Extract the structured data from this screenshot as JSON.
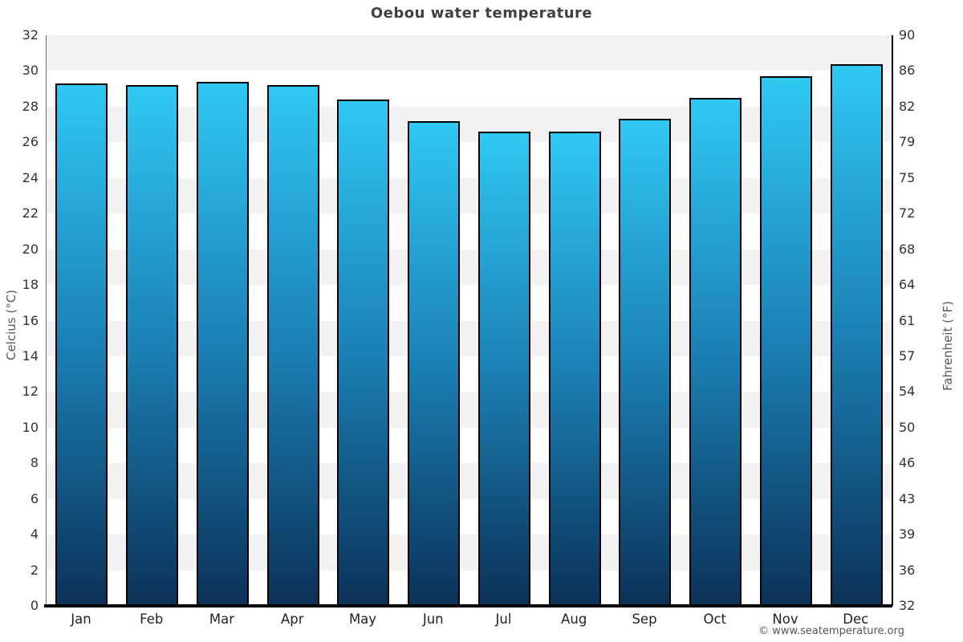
{
  "page": {
    "title": "Oebou water temperature",
    "footer": "© www.seatemperature.org"
  },
  "axes": {
    "left_label": "Celcius (°C)",
    "right_label": "Fahrenheit (°F)"
  },
  "chart_data": {
    "type": "bar",
    "title": "Oebou water temperature",
    "categories": [
      "Jan",
      "Feb",
      "Mar",
      "Apr",
      "May",
      "Jun",
      "Jul",
      "Aug",
      "Sep",
      "Oct",
      "Nov",
      "Dec"
    ],
    "values": [
      29.3,
      29.2,
      29.4,
      29.2,
      28.4,
      27.2,
      26.6,
      26.6,
      27.3,
      28.5,
      29.7,
      30.4
    ],
    "unit": "°C",
    "xlabel": "",
    "ylabel_left": "Celcius (°C)",
    "ylabel_right": "Fahrenheit (°F)",
    "ylim_left": [
      0,
      32
    ],
    "ytick_step_left": 2,
    "yticks_left": [
      "0",
      "2",
      "4",
      "6",
      "8",
      "10",
      "12",
      "14",
      "16",
      "18",
      "20",
      "22",
      "24",
      "26",
      "28",
      "30",
      "32"
    ],
    "yticks_right": [
      "32",
      "36",
      "39",
      "43",
      "46",
      "50",
      "54",
      "57",
      "61",
      "64",
      "68",
      "72",
      "75",
      "79",
      "82",
      "86",
      "90"
    ],
    "grid": "alternating horizontal bands every 2°C, gray band at top (30-32)",
    "legend": "none",
    "colors": {
      "bar_gradient_top": "#30c8f4",
      "bar_gradient_mid": "#1b80b4",
      "bar_gradient_bottom": "#0b3158",
      "bar_outline": "#000000",
      "band_gray": "#f2f2f2",
      "band_white": "#ffffff",
      "title_text": "#404040",
      "tick_text": "#333333",
      "axis_title_text": "#595959",
      "footer_text": "#555555"
    }
  }
}
